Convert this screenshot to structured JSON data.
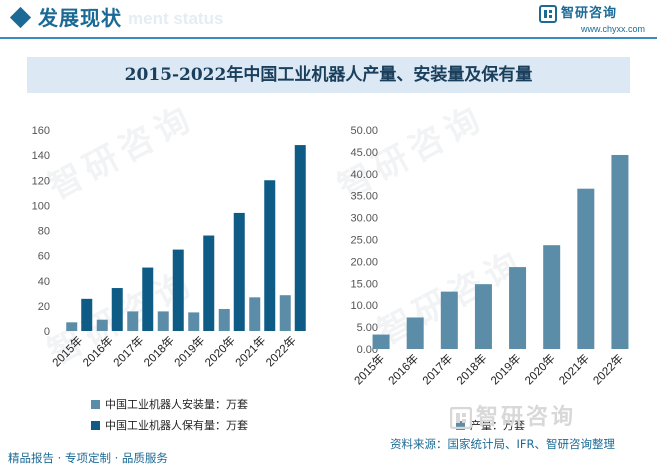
{
  "header": {
    "title": "发展现状",
    "ghost_text": "ment status"
  },
  "brand": {
    "name": "智研咨询",
    "url": "www.chyxx.com"
  },
  "title": "2015-2022年中国工业机器人产量、安装量及保有量",
  "watermark_text": "智研咨询",
  "colors": {
    "accent": "#1b6a95",
    "install": "#5b8ca8",
    "stock": "#0e5c86",
    "production": "#5b8ca8",
    "title_bg": "#dce8f3"
  },
  "chart_data": [
    {
      "type": "bar",
      "categories": [
        "2015年",
        "2016年",
        "2017年",
        "2018年",
        "2019年",
        "2020年",
        "2021年",
        "2022年"
      ],
      "series": [
        {
          "name": "中国工业机器人安装量：万套",
          "values": [
            6.9,
            9.0,
            15.6,
            15.6,
            14.8,
            17.5,
            26.8,
            28.5
          ]
        },
        {
          "name": "中国工业机器人保有量：万套",
          "values": [
            25.6,
            34.2,
            50.5,
            64.8,
            76.0,
            94.0,
            120.0,
            148.0
          ]
        }
      ],
      "ylim": [
        0,
        160
      ],
      "yticks": [
        "0",
        "20",
        "40",
        "60",
        "80",
        "100",
        "120",
        "140",
        "160"
      ],
      "grid": false,
      "legend": "bottom"
    },
    {
      "type": "bar",
      "categories": [
        "2015年",
        "2016年",
        "2017年",
        "2018年",
        "2019年",
        "2020年",
        "2021年",
        "2022年"
      ],
      "series": [
        {
          "name": "产量：万套",
          "values": [
            3.3,
            7.2,
            13.1,
            14.8,
            18.7,
            23.7,
            36.6,
            44.3
          ]
        }
      ],
      "ylim": [
        0,
        50
      ],
      "yticks": [
        "0.00",
        "5.00",
        "10.00",
        "15.00",
        "20.00",
        "25.00",
        "30.00",
        "35.00",
        "40.00",
        "45.00",
        "50.00"
      ],
      "grid": false,
      "legend": "bottom"
    }
  ],
  "footer": {
    "left": "精品报告 · 专项定制 · 品质服务",
    "source": "资料来源：国家统计局、IFR、智研咨询整理",
    "brand": "智研咨询"
  }
}
